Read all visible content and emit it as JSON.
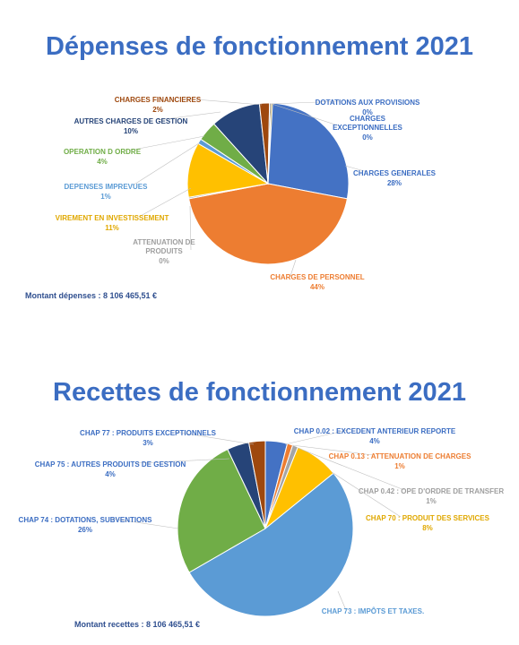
{
  "chart_data": [
    {
      "type": "pie",
      "title": "Dépenses de fonctionnement 2021",
      "total_text": "Montant dépenses : 8 106 465,51 €",
      "slices": [
        {
          "label": "CHARGES GENERALES",
          "value": 28,
          "value_text": "28%",
          "color": "#4472c4"
        },
        {
          "label": "CHARGES DE PERSONNEL",
          "value": 44,
          "value_text": "44%",
          "color": "#ed7d31"
        },
        {
          "label": "ATTENUATION DE PRODUITS",
          "value": 0,
          "value_text": "0%",
          "color": "#a5a5a5"
        },
        {
          "label": "VIREMENT EN INVESTISSEMENT",
          "value": 11,
          "value_text": "11%",
          "color": "#ffc000"
        },
        {
          "label": "DEPENSES IMPREVUES",
          "value": 1,
          "value_text": "1%",
          "color": "#5b9bd5"
        },
        {
          "label": "OPERATION D ORDRE",
          "value": 4,
          "value_text": "4%",
          "color": "#70ad47"
        },
        {
          "label": "AUTRES CHARGES DE GESTION",
          "value": 10,
          "value_text": "10%",
          "color": "#264478"
        },
        {
          "label": "CHARGES FINANCIERES",
          "value": 2,
          "value_text": "2%",
          "color": "#9e480e"
        },
        {
          "label": "DOTATIONS AUX PROVISIONS",
          "value": 0,
          "value_text": "0%",
          "color": "#636363"
        },
        {
          "label": "CHARGES EXCEPTIONNELLES",
          "value": 0,
          "value_text": "0%",
          "color": "#997300"
        }
      ]
    },
    {
      "type": "pie",
      "title": "Recettes de fonctionnement 2021",
      "total_text": "Montant recettes : 8 106 465,51 €",
      "slices": [
        {
          "label": "CHAP 0.02 : EXCEDENT ANTERIEUR REPORTE",
          "value": 4,
          "value_text": "4%",
          "color": "#4472c4"
        },
        {
          "label": "CHAP 0.13 : ATTENUATION DE CHARGES",
          "value": 1,
          "value_text": "1%",
          "color": "#ed7d31"
        },
        {
          "label": "CHAP 0.42 : OPE D'ORDRE DE TRANSFER",
          "value": 1,
          "value_text": "1%",
          "color": "#a5a5a5"
        },
        {
          "label": "CHAP 70 : PRODUIT DES SERVICES",
          "value": 8,
          "value_text": "8%",
          "color": "#ffc000"
        },
        {
          "label": "CHAP 73 : IMPÔTS ET TAXES.",
          "value": 52,
          "value_text": "",
          "color": "#5b9bd5"
        },
        {
          "label": "CHAP 74 : DOTATIONS, SUBVENTIONS",
          "value": 26,
          "value_text": "26%",
          "color": "#70ad47"
        },
        {
          "label": "CHAP 75 : AUTRES PRODUITS DE GESTION",
          "value": 4,
          "value_text": "4%",
          "color": "#264478"
        },
        {
          "label": "CHAP 77 : PRODUITS EXCEPTIONNELS",
          "value": 3,
          "value_text": "3%",
          "color": "#9e480e"
        }
      ]
    }
  ]
}
